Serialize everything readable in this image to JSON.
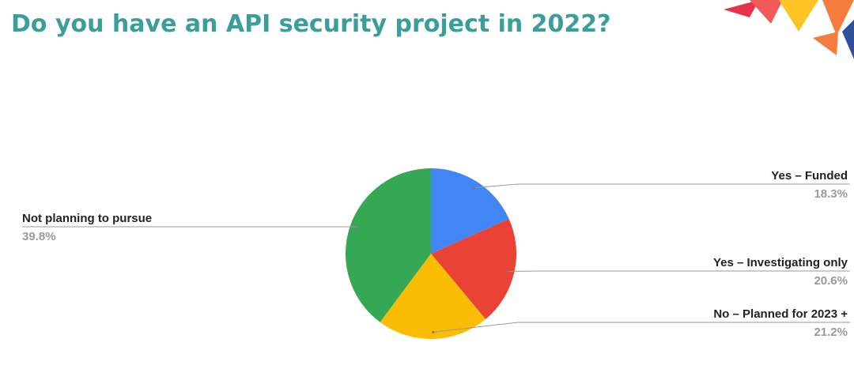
{
  "chart_data": {
    "type": "pie",
    "title": "Do you have an API security project in 2022?",
    "categories": [
      "Yes – Funded",
      "Yes – Investigating only",
      "No – Planned for 2023 +",
      "Not planning to pursue"
    ],
    "values": [
      18.3,
      20.6,
      21.2,
      39.8
    ],
    "value_labels": [
      "18.3%",
      "20.6%",
      "21.2%",
      "39.8%"
    ],
    "colors": [
      "#4285f4",
      "#ea4335",
      "#fbbc04",
      "#34a853"
    ]
  }
}
